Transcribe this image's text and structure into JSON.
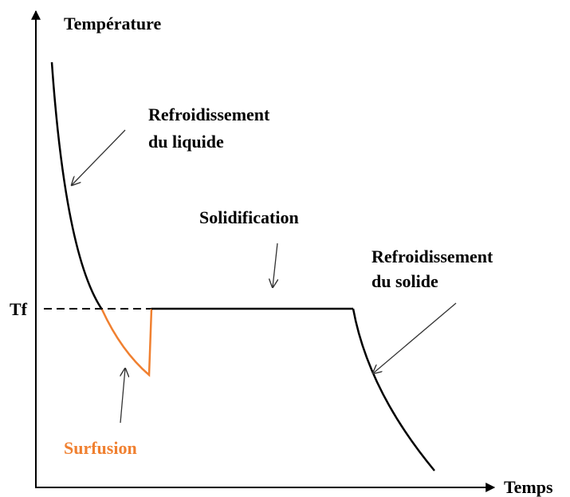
{
  "axes": {
    "y_label": "Température",
    "x_label": "Temps",
    "tf_label": "Tf"
  },
  "annotations": {
    "liquid": [
      "Refroidissement",
      "du liquide"
    ],
    "solidification": "Solidification",
    "solid": [
      "Refroidissement",
      "du solide"
    ],
    "supercooling": "Surfusion"
  }
}
